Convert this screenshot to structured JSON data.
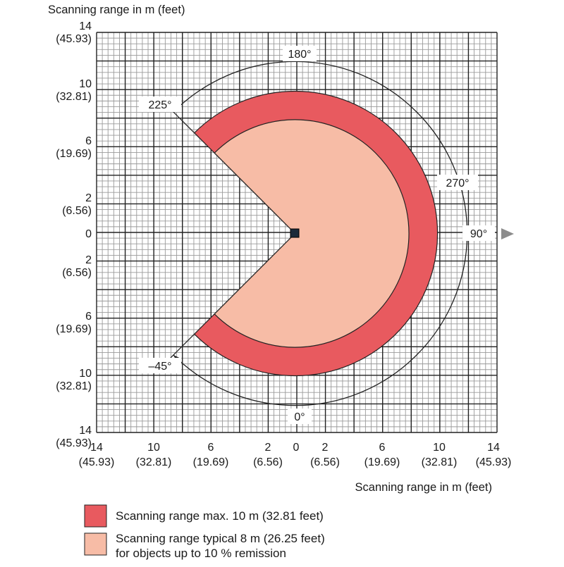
{
  "axis_label_top": "Scanning range in m (feet)",
  "axis_label_bottom": "Scanning range in m (feet)",
  "y_ticks": [
    {
      "value": "14",
      "sub": "(45.93)"
    },
    {
      "value": "10",
      "sub": "(32.81)"
    },
    {
      "value": "6",
      "sub": "(19.69)"
    },
    {
      "value": "2",
      "sub": "(6.56)"
    },
    {
      "value": "0",
      "sub": ""
    },
    {
      "value": "2",
      "sub": "(6.56)"
    },
    {
      "value": "6",
      "sub": "(19.69)"
    },
    {
      "value": "10",
      "sub": "(32.81)"
    },
    {
      "value": "14",
      "sub": "(45.93)"
    }
  ],
  "x_ticks": [
    {
      "value": "14",
      "sub": "(45.93)"
    },
    {
      "value": "10",
      "sub": "(32.81)"
    },
    {
      "value": "6",
      "sub": "(19.69)"
    },
    {
      "value": "2",
      "sub": "(6.56)"
    },
    {
      "value": "0",
      "sub": ""
    },
    {
      "value": "2",
      "sub": "(6.56)"
    },
    {
      "value": "6",
      "sub": "(19.69)"
    },
    {
      "value": "10",
      "sub": "(32.81)"
    },
    {
      "value": "14",
      "sub": "(45.93)"
    }
  ],
  "angle_labels": {
    "a180": "180°",
    "a225": "225°",
    "a270": "270°",
    "a90": "90°",
    "a0": "0°",
    "am45": "–45°"
  },
  "ranges": {
    "max_m": 10,
    "typical_m": 8,
    "grid_extent_m": 14,
    "start_angle_deg": -45,
    "end_angle_deg": 225
  },
  "colors": {
    "max_range": "#e85a5f",
    "typical_range": "#f7bca6",
    "grid_major": "#222222",
    "grid_minor": "#9a9a9a",
    "arrow": "#8c8c8c"
  },
  "legend": {
    "max_label": "Scanning range max. 10 m (32.81 feet)",
    "typical_line1": "Scanning range typical 8 m (26.25 feet)",
    "typical_line2": "for objects up to 10 % remission"
  }
}
